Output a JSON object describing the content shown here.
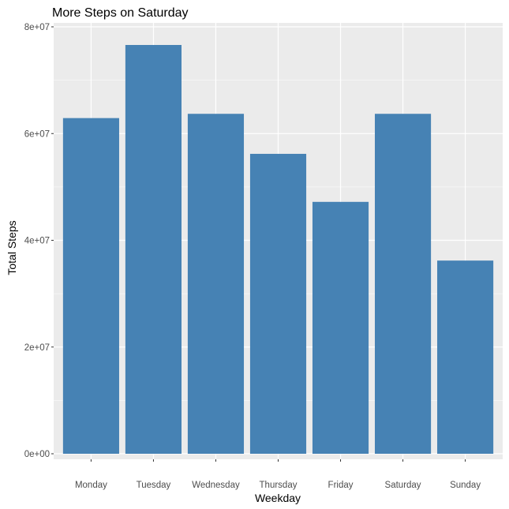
{
  "chart_data": {
    "type": "bar",
    "title": "More Steps on Saturday",
    "xlabel": "Weekday",
    "ylabel": "Total Steps",
    "categories": [
      "Monday",
      "Tuesday",
      "Wednesday",
      "Thursday",
      "Friday",
      "Saturday",
      "Sunday"
    ],
    "values": [
      62900000,
      76600000,
      63700000,
      56200000,
      47200000,
      63700000,
      36200000
    ],
    "ylim": [
      0,
      80000000
    ],
    "yticks": [
      0,
      20000000,
      40000000,
      60000000,
      80000000
    ],
    "ytick_labels": [
      "0e+00",
      "2e+07",
      "4e+07",
      "6e+07",
      "8e+07"
    ],
    "grid": true,
    "bar_color": "#4682B4",
    "panel_background": "#EBEBEB",
    "gridline_color": "#FFFFFF"
  }
}
